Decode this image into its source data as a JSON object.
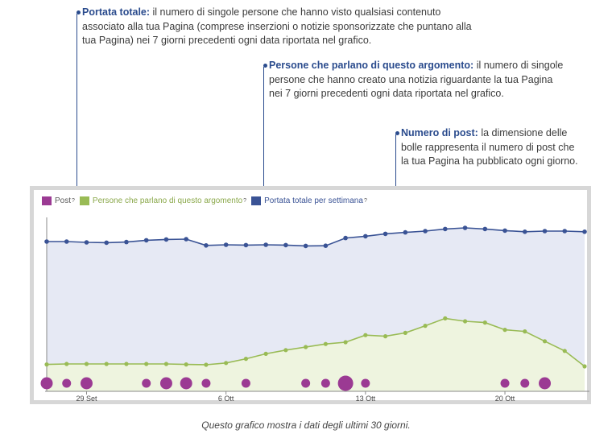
{
  "annotations": [
    {
      "title": "Portata totale:",
      "lines": [
        " il numero di singole persone che hanno visto qualsiasi contenuto",
        "associato alla tua Pagina (comprese inserzioni o notizie sponsorizzate che puntano alla",
        "tua Pagina) nei 7 giorni precedenti ogni data riportata nel grafico."
      ]
    },
    {
      "title": "Persone che parlano di questo argomento:",
      "lines": [
        " il numero di singole",
        "persone che hanno creato una notizia riguardante la tua Pagina",
        "nei 7 giorni precedenti ogni data riportata nel grafico."
      ]
    },
    {
      "title": "Numero di post:",
      "lines": [
        " la dimensione delle",
        "bolle rappresenta il numero di post che",
        "la tua Pagina ha pubblicato ogni giorno."
      ]
    }
  ],
  "legend": {
    "post": "Post",
    "talking": "Persone che parlano di questo argomento",
    "reach": "Portata totale per settimana",
    "help_mark": "?"
  },
  "caption": "Questo grafico mostra i dati degli ultimi 30 giorni.",
  "colors": {
    "reach": "#3a5395",
    "reach_fill": "#e6e9f4",
    "talking": "#99bb55",
    "talking_fill": "#eef4df",
    "post": "#9b3a93",
    "annotation_title": "#2a4b8d",
    "frame": "#d7d7d7"
  },
  "chart_data": {
    "type": "line",
    "x_tick_labels": [
      {
        "index": 2,
        "label": "29 Set"
      },
      {
        "index": 9,
        "label": "6 Ott"
      },
      {
        "index": 16,
        "label": "13 Ott"
      },
      {
        "index": 23,
        "label": "20 Ott"
      }
    ],
    "ylim": [
      0,
      100
    ],
    "series": [
      {
        "name": "Portata totale per settimana",
        "values": [
          81,
          81,
          80.5,
          80.3,
          80.7,
          81.8,
          82.3,
          82.5,
          78.6,
          79,
          78.8,
          79,
          78.8,
          78.3,
          78.4,
          83.2,
          84.3,
          85.8,
          86.7,
          87.5,
          88.8,
          89.5,
          88.8,
          87.8,
          87.1,
          87.5,
          87.5,
          87.1
        ]
      },
      {
        "name": "Persone che parlano di questo argomento",
        "values": [
          4.7,
          5,
          5,
          5,
          5,
          5,
          5,
          4.7,
          4.5,
          5.6,
          8.2,
          11.3,
          13.6,
          15.5,
          17.4,
          18.5,
          22.9,
          22.2,
          24.3,
          28.7,
          33.3,
          31.5,
          30.7,
          26.2,
          25.2,
          19.1,
          13.1,
          3.5
        ]
      },
      {
        "name": "Post",
        "sizes": [
          2,
          1,
          2,
          0,
          0,
          1,
          2,
          2,
          1,
          0,
          1,
          0,
          0,
          1,
          1,
          3,
          1,
          0,
          0,
          0,
          0,
          0,
          0,
          1,
          1,
          2,
          0,
          0
        ]
      }
    ]
  }
}
